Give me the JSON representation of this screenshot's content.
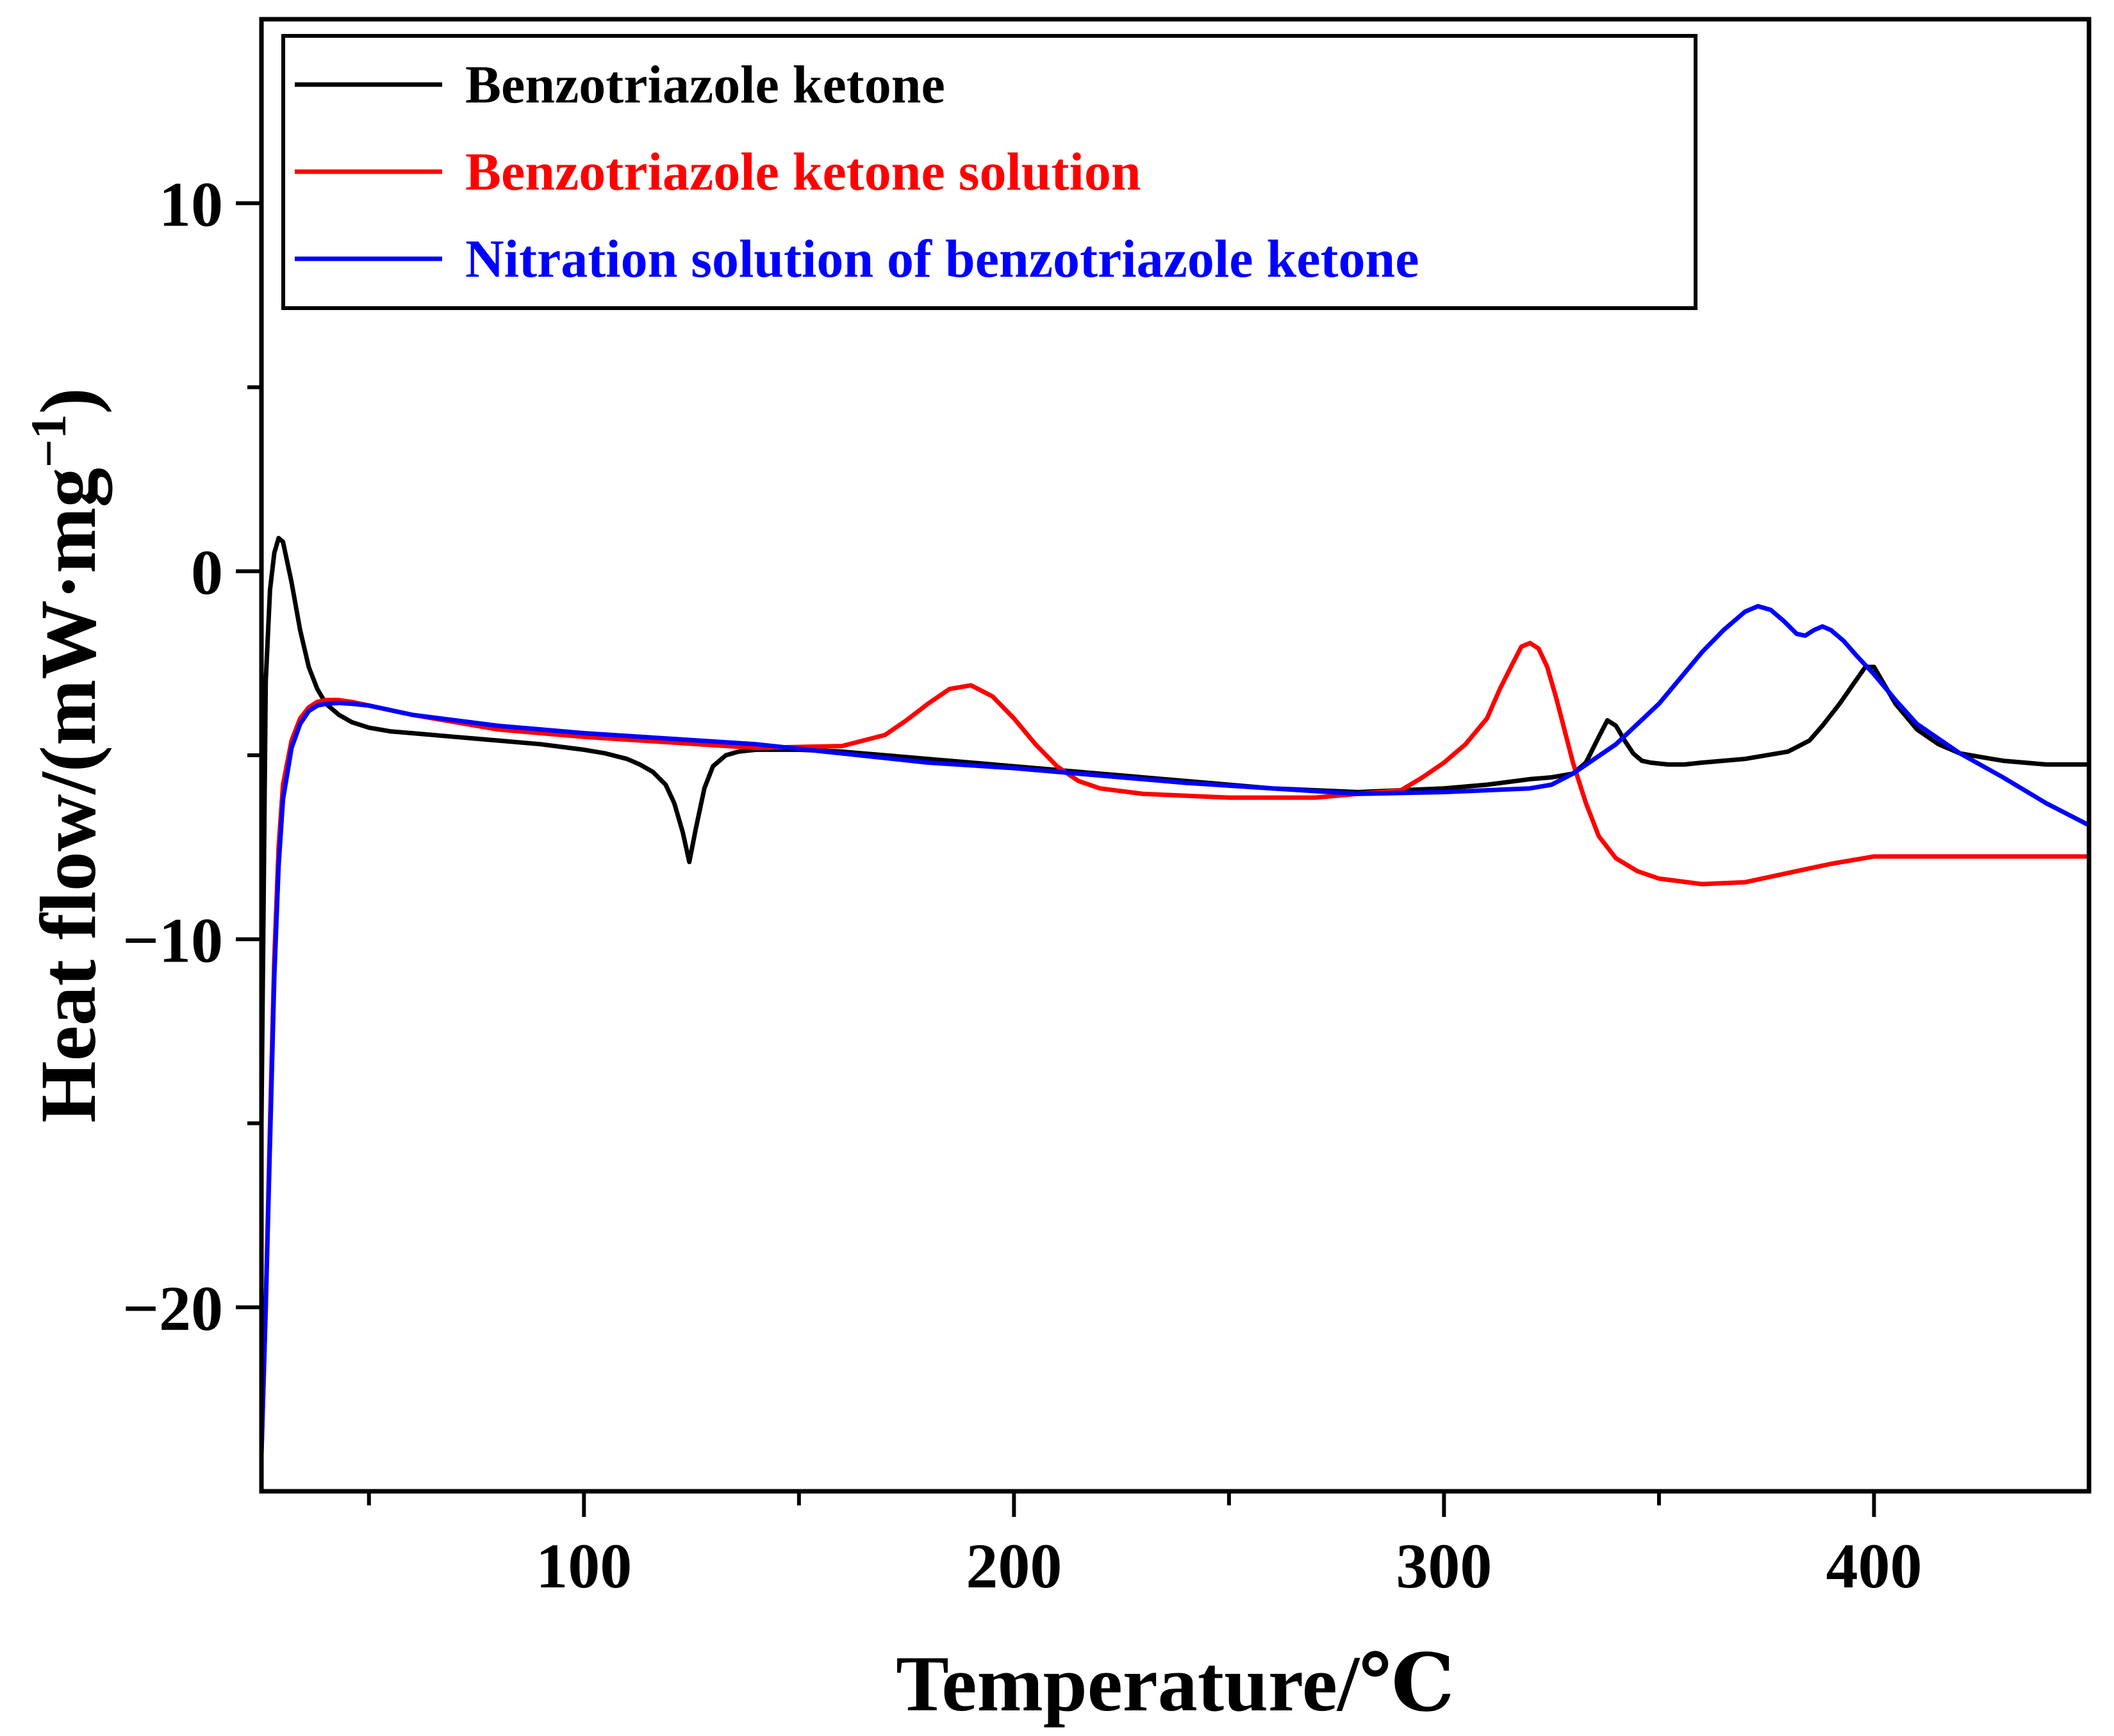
{
  "chart_data": {
    "type": "line",
    "title": "",
    "xlabel": "Temperature/℃",
    "ylabel": "Heat flow/(mW·mg",
    "ylabel_sup": "−1",
    "ylabel_close": ")",
    "xlim": [
      25,
      450
    ],
    "ylim": [
      -25,
      15
    ],
    "xticks": [
      100,
      200,
      300,
      400
    ],
    "xtick_labels": [
      "100",
      "200",
      "300",
      "400"
    ],
    "x_minor_ticks": [
      50,
      150,
      250,
      350
    ],
    "yticks": [
      -20,
      -10,
      0,
      10
    ],
    "ytick_labels": [
      "−20",
      "−10",
      "0",
      "10"
    ],
    "y_minor_ticks": [
      -15,
      -5,
      5
    ],
    "legend_position": "top-left",
    "series": [
      {
        "name": "Benzotriazole ketone",
        "color": "#000000",
        "x": [
          25,
          26,
          27,
          28,
          29,
          30,
          32,
          34,
          36,
          38,
          40,
          43,
          46,
          50,
          55,
          60,
          70,
          80,
          90,
          100,
          105,
          110,
          113,
          116,
          119,
          121,
          123,
          124.5,
          126,
          128,
          130,
          133,
          136,
          140,
          150,
          160,
          170,
          180,
          200,
          220,
          240,
          260,
          280,
          300,
          310,
          320,
          325,
          330,
          333,
          336,
          338,
          340,
          342,
          344,
          346,
          348,
          352,
          356,
          360,
          370,
          380,
          385,
          388,
          392,
          395,
          398,
          400,
          402,
          405,
          410,
          415,
          420,
          425,
          430,
          440,
          450
        ],
        "y": [
          -15.0,
          -3.0,
          -0.5,
          0.5,
          0.9,
          0.8,
          -0.3,
          -1.6,
          -2.6,
          -3.2,
          -3.6,
          -3.9,
          -4.1,
          -4.25,
          -4.35,
          -4.4,
          -4.5,
          -4.6,
          -4.7,
          -4.85,
          -4.95,
          -5.1,
          -5.25,
          -5.45,
          -5.8,
          -6.3,
          -7.1,
          -7.9,
          -7.0,
          -5.9,
          -5.3,
          -5.0,
          -4.9,
          -4.85,
          -4.85,
          -4.9,
          -5.0,
          -5.1,
          -5.3,
          -5.5,
          -5.7,
          -5.9,
          -6.0,
          -5.9,
          -5.8,
          -5.65,
          -5.6,
          -5.5,
          -5.2,
          -4.5,
          -4.05,
          -4.2,
          -4.6,
          -4.95,
          -5.15,
          -5.2,
          -5.25,
          -5.25,
          -5.2,
          -5.1,
          -4.9,
          -4.6,
          -4.2,
          -3.6,
          -3.1,
          -2.6,
          -2.6,
          -3.0,
          -3.6,
          -4.3,
          -4.7,
          -4.95,
          -5.05,
          -5.15,
          -5.25,
          -5.25
        ]
      },
      {
        "name": "Benzotriazole ketone solution",
        "color": "#ff0000",
        "x": [
          25,
          26,
          27,
          28,
          29,
          30,
          32,
          34,
          36,
          38,
          40,
          43,
          46,
          50,
          60,
          80,
          100,
          120,
          140,
          160,
          170,
          175,
          180,
          185,
          190,
          195,
          200,
          205,
          210,
          215,
          220,
          230,
          250,
          270,
          280,
          290,
          295,
          300,
          305,
          310,
          313,
          316,
          318,
          320,
          322,
          324,
          326,
          328,
          330,
          333,
          336,
          340,
          345,
          350,
          360,
          370,
          380,
          390,
          400,
          420,
          450
        ],
        "y": [
          -24.0,
          -20.0,
          -15.0,
          -10.5,
          -7.5,
          -5.8,
          -4.6,
          -4.0,
          -3.7,
          -3.55,
          -3.5,
          -3.5,
          -3.55,
          -3.65,
          -3.9,
          -4.3,
          -4.5,
          -4.65,
          -4.8,
          -4.75,
          -4.45,
          -4.05,
          -3.6,
          -3.2,
          -3.1,
          -3.4,
          -4.0,
          -4.7,
          -5.3,
          -5.7,
          -5.9,
          -6.05,
          -6.15,
          -6.15,
          -6.05,
          -5.95,
          -5.6,
          -5.2,
          -4.7,
          -4.0,
          -3.2,
          -2.5,
          -2.05,
          -1.95,
          -2.1,
          -2.6,
          -3.4,
          -4.3,
          -5.2,
          -6.3,
          -7.2,
          -7.8,
          -8.15,
          -8.35,
          -8.5,
          -8.45,
          -8.2,
          -7.95,
          -7.75,
          -7.75,
          -7.75
        ]
      },
      {
        "name": "Nitration solution of benzotriazole ketone",
        "color": "#0000ff",
        "x": [
          25,
          26,
          27,
          28,
          29,
          30,
          32,
          34,
          36,
          38,
          40,
          43,
          46,
          50,
          60,
          80,
          100,
          120,
          140,
          160,
          180,
          200,
          220,
          240,
          260,
          280,
          300,
          310,
          320,
          325,
          330,
          340,
          350,
          355,
          360,
          365,
          370,
          373,
          376,
          379,
          382,
          384,
          386,
          388,
          390,
          393,
          396,
          400,
          405,
          410,
          420,
          430,
          440,
          450
        ],
        "y": [
          -24.0,
          -20.0,
          -15.5,
          -11.0,
          -8.0,
          -6.2,
          -4.8,
          -4.15,
          -3.8,
          -3.65,
          -3.6,
          -3.58,
          -3.6,
          -3.65,
          -3.9,
          -4.2,
          -4.4,
          -4.55,
          -4.7,
          -4.95,
          -5.2,
          -5.35,
          -5.55,
          -5.75,
          -5.9,
          -6.05,
          -6.0,
          -5.95,
          -5.9,
          -5.8,
          -5.5,
          -4.7,
          -3.6,
          -2.9,
          -2.2,
          -1.6,
          -1.1,
          -0.95,
          -1.05,
          -1.35,
          -1.7,
          -1.75,
          -1.6,
          -1.5,
          -1.6,
          -1.9,
          -2.3,
          -2.8,
          -3.5,
          -4.15,
          -4.95,
          -5.6,
          -6.3,
          -6.9
        ]
      }
    ]
  }
}
